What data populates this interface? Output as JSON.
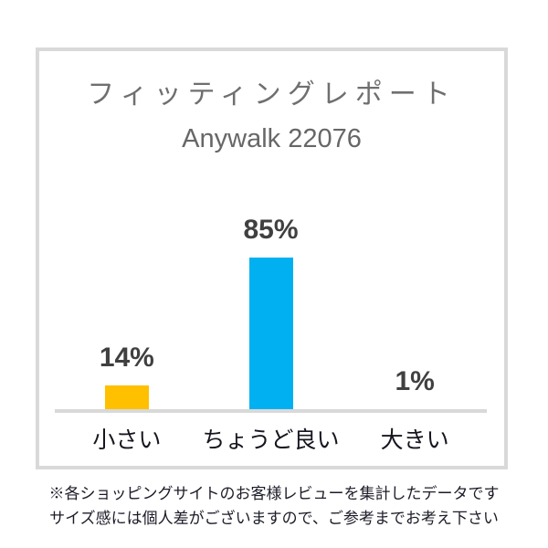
{
  "chart_data": {
    "type": "bar",
    "title": "フィッティングレポート",
    "subtitle": "Anywalk 22076",
    "categories": [
      "小さい",
      "ちょうど良い",
      "大きい"
    ],
    "values": [
      14,
      85,
      1
    ],
    "value_labels": [
      "14%",
      "85%",
      "1%"
    ],
    "unit": "%",
    "ylim": [
      0,
      100
    ],
    "grid": false,
    "legend": "none",
    "bar_colors": [
      "#FFC000",
      "#00B0F0",
      "#D9D9D9"
    ]
  },
  "footnote": {
    "line1": "※各ショッピングサイトのお客様レビューを集計したデータです",
    "line2": "サイズ感には個人差がございますので、ご参考までお考え下さい"
  },
  "colors": {
    "background": "#FFFFFF",
    "frame_border": "#D9D9D9",
    "axis_line": "#D9D9D9",
    "title_text": "#6F6F6F",
    "value_label_text": "#404040",
    "category_text": "#16161F",
    "footnote_text": "#1C1C28"
  }
}
